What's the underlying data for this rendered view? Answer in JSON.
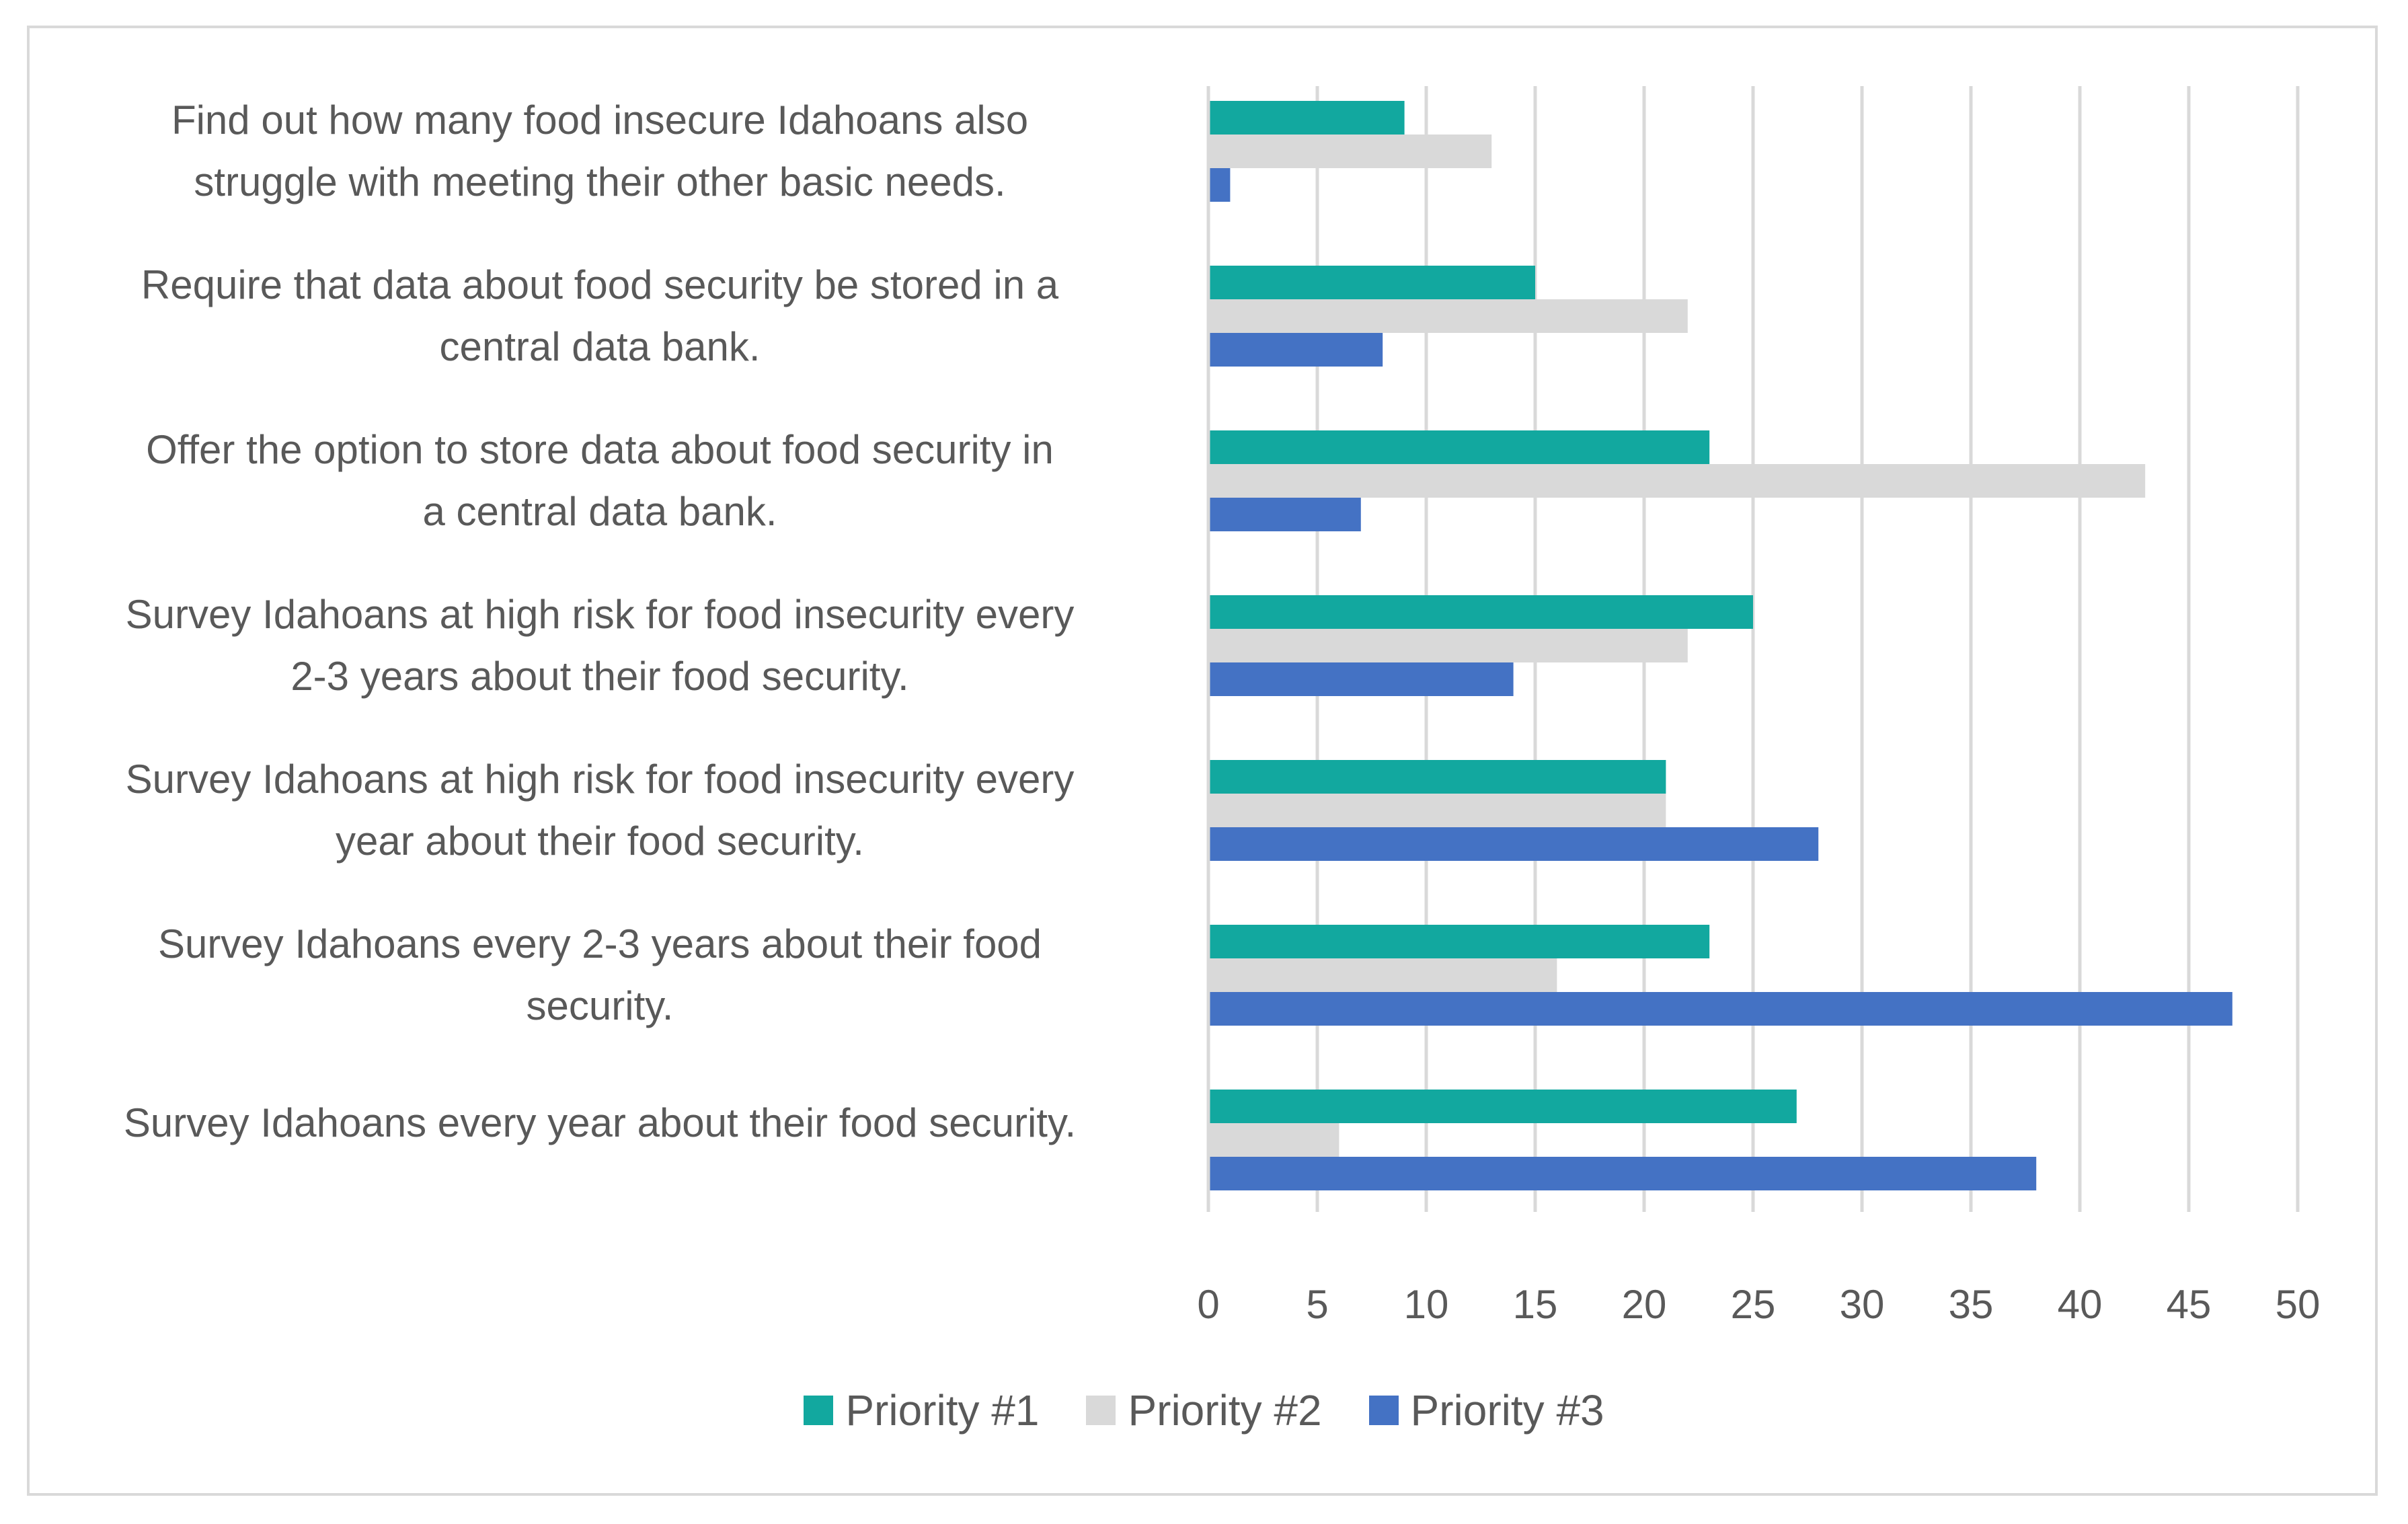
{
  "chart_data": {
    "type": "bar",
    "orientation": "horizontal",
    "title": "",
    "xlabel": "",
    "ylabel": "",
    "xlim": [
      0,
      50
    ],
    "ticks": [
      0,
      5,
      10,
      15,
      20,
      25,
      30,
      35,
      40,
      45,
      50
    ],
    "tick_labels": [
      "0",
      "5",
      "10",
      "15",
      "20",
      "25",
      "30",
      "35",
      "40",
      "45",
      "50"
    ],
    "grid": true,
    "legend_position": "bottom",
    "categories": [
      [
        "Find out how many food insecure Idahoans also",
        "struggle with meeting their other basic needs."
      ],
      [
        "Require that data about food security be stored in a",
        "central data bank."
      ],
      [
        "Offer the option to store data about food security in",
        "a central data bank."
      ],
      [
        "Survey Idahoans at high risk for food insecurity every",
        "2-3 years about their food security."
      ],
      [
        "Survey Idahoans at high risk for food insecurity every",
        "year about their food security."
      ],
      [
        "Survey Idahoans every 2-3 years about their food",
        "security."
      ],
      [
        "Survey Idahoans every year about their food security."
      ]
    ],
    "series": [
      {
        "name": "Priority #1",
        "color": "#12a89f",
        "values": [
          9,
          15,
          23,
          25,
          21,
          23,
          27
        ]
      },
      {
        "name": "Priority #2",
        "color": "#d9d9d9",
        "values": [
          13,
          22,
          43,
          22,
          21,
          16,
          6
        ]
      },
      {
        "name": "Priority #3",
        "color": "#4472c4",
        "values": [
          1,
          8,
          7,
          14,
          28,
          47,
          38
        ]
      }
    ]
  }
}
